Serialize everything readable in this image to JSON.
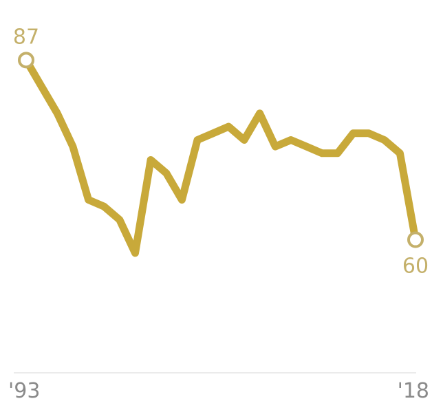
{
  "chart_data": {
    "type": "line",
    "x": [
      1993,
      1994,
      1995,
      1996,
      1997,
      1998,
      1999,
      2000,
      2001,
      2002,
      2003,
      2004,
      2005,
      2006,
      2007,
      2008,
      2009,
      2010,
      2011,
      2012,
      2013,
      2014,
      2015,
      2016,
      2017,
      2018
    ],
    "series": [
      {
        "values": [
          87,
          83,
          79,
          74,
          66,
          65,
          63,
          58,
          72,
          70,
          66,
          75,
          76,
          77,
          75,
          79,
          74,
          75,
          74,
          73,
          73,
          76,
          76,
          75,
          73,
          60
        ]
      }
    ],
    "start_label": "87",
    "end_label": "60",
    "x_tick_labels": [
      "'93",
      "'18"
    ],
    "ylim": [
      40,
      95
    ],
    "grid": false,
    "legend": "none",
    "colors": {
      "line": "#c8a93a",
      "label": "#c4b06a",
      "baseline": "#ebebeb",
      "tick": "#8a8a8a"
    }
  }
}
